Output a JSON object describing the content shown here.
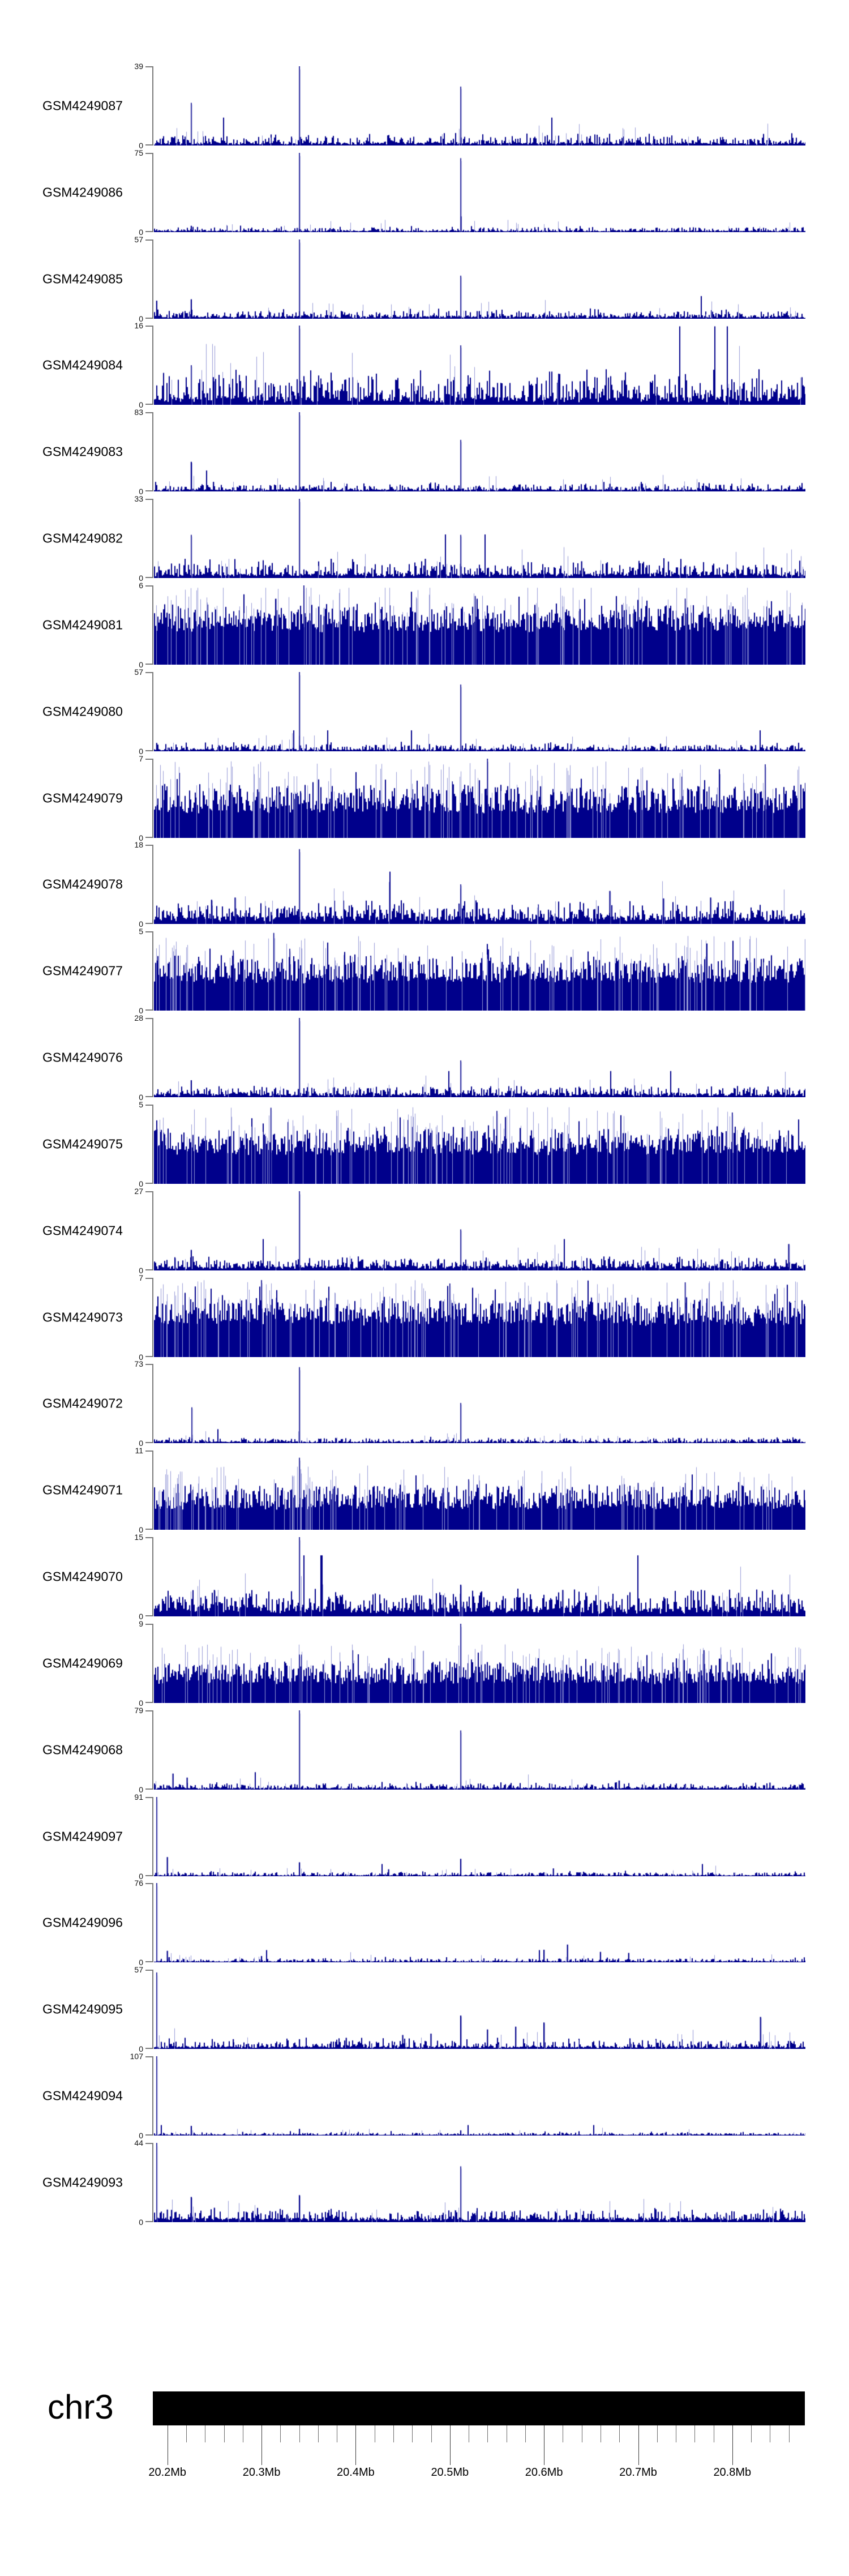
{
  "chart_data": {
    "type": "bar",
    "title": "",
    "chromosome": "chr3",
    "xlabel": "",
    "ylabel": "",
    "x_axis": {
      "tick_labels": [
        "20.2Mb",
        "20.3Mb",
        "20.4Mb",
        "20.5Mb",
        "20.6Mb",
        "20.7Mb",
        "20.8Mb"
      ],
      "major_step_mb": 0.1,
      "minor_step_mb": 0.02,
      "first_major_mb": 20.2,
      "minor_tick_count": 34
    },
    "colors": {
      "bar_dark": "#00008b",
      "bar_light": "#9598d6",
      "axis_gray": "#7b7b7b",
      "ruler_tick": "#3c3c3c",
      "ideogram_black": "#000000",
      "text_black": "#000000"
    },
    "tracks": [
      {
        "label": "GSM4249087",
        "ymax": 39,
        "ymin": 0,
        "profile": "sparse",
        "noise": {
          "base": 0.035,
          "jit": 0.1,
          "p": 0.06,
          "sh": 0.16
        },
        "peaks": [
          [
            20.2254,
            21
          ],
          [
            20.3403,
            39
          ],
          [
            20.5116,
            29
          ]
        ]
      },
      {
        "label": "GSM4249086",
        "ymax": 75,
        "ymin": 0,
        "profile": "sparse",
        "noise": {
          "base": 0.018,
          "jit": 0.05,
          "p": 0.04,
          "sh": 0.09
        },
        "peaks": [
          [
            20.2254,
            6
          ],
          [
            20.3403,
            75
          ],
          [
            20.5116,
            70
          ]
        ]
      },
      {
        "label": "GSM4249085",
        "ymax": 57,
        "ymin": 0,
        "profile": "sparse",
        "noise": {
          "base": 0.03,
          "jit": 0.08,
          "p": 0.05,
          "sh": 0.13
        },
        "peaks": [
          [
            20.1887,
            13
          ],
          [
            20.2254,
            14
          ],
          [
            20.3403,
            57
          ],
          [
            20.5116,
            31
          ]
        ]
      },
      {
        "label": "GSM4249084",
        "ymax": 16,
        "ymin": 0,
        "profile": "sparse",
        "noise": {
          "base": 0.1,
          "jit": 0.28,
          "p": 0.1,
          "sh": 0.45
        },
        "peaks": [
          [
            20.2254,
            8
          ],
          [
            20.3403,
            16
          ],
          [
            20.5116,
            12
          ]
        ]
      },
      {
        "label": "GSM4249083",
        "ymax": 83,
        "ymin": 0,
        "profile": "sparse",
        "noise": {
          "base": 0.025,
          "jit": 0.07,
          "p": 0.05,
          "sh": 0.12
        },
        "peaks": [
          [
            20.2254,
            31
          ],
          [
            20.249,
            10
          ],
          [
            20.3403,
            83
          ],
          [
            20.5116,
            54
          ],
          [
            20.67,
            8
          ]
        ]
      },
      {
        "label": "GSM4249082",
        "ymax": 33,
        "ymin": 0,
        "profile": "sparse",
        "noise": {
          "base": 0.055,
          "jit": 0.14,
          "p": 0.08,
          "sh": 0.25
        },
        "peaks": [
          [
            20.2254,
            18
          ],
          [
            20.3403,
            33
          ],
          [
            20.5116,
            18
          ],
          [
            20.374,
            8
          ],
          [
            20.474,
            8
          ],
          [
            20.64,
            7
          ]
        ]
      },
      {
        "label": "GSM4249081",
        "ymax": 6,
        "ymin": 0,
        "profile": "dense",
        "noise": {
          "base": 0.45,
          "head": 0.3
        },
        "peaks": [
          [
            20.345,
            6
          ],
          [
            20.527,
            5.2
          ],
          [
            20.75,
            5
          ]
        ]
      },
      {
        "label": "GSM4249080",
        "ymax": 57,
        "ymin": 0,
        "profile": "sparse",
        "noise": {
          "base": 0.025,
          "jit": 0.07,
          "p": 0.05,
          "sh": 0.12
        },
        "peaks": [
          [
            20.1887,
            6
          ],
          [
            20.3403,
            57
          ],
          [
            20.5116,
            48
          ]
        ]
      },
      {
        "label": "GSM4249079",
        "ymax": 7,
        "ymin": 0,
        "profile": "dense",
        "noise": {
          "base": 0.34,
          "head": 0.33
        },
        "peaks": [
          [
            20.54,
            7
          ],
          [
            20.835,
            6.5
          ]
        ]
      },
      {
        "label": "GSM4249078",
        "ymax": 18,
        "ymin": 0,
        "profile": "sparse",
        "noise": {
          "base": 0.1,
          "jit": 0.16,
          "p": 0.1,
          "sh": 0.3
        },
        "peaks": [
          [
            20.247,
            5.5
          ],
          [
            20.272,
            6
          ],
          [
            20.3403,
            17
          ],
          [
            20.5116,
            9
          ],
          [
            20.67,
            7.5
          ],
          [
            20.727,
            5.8
          ],
          [
            20.777,
            6
          ]
        ]
      },
      {
        "label": "GSM4249077",
        "ymax": 5,
        "ymin": 0,
        "profile": "dense",
        "noise": {
          "base": 0.38,
          "head": 0.3
        },
        "peaks": [
          [
            20.313,
            4.9
          ],
          [
            20.27,
            3.8
          ],
          [
            20.33,
            3.9
          ]
        ]
      },
      {
        "label": "GSM4249076",
        "ymax": 28,
        "ymin": 0,
        "profile": "sparse",
        "noise": {
          "base": 0.045,
          "jit": 0.1,
          "p": 0.06,
          "sh": 0.15
        },
        "peaks": [
          [
            20.2254,
            6
          ],
          [
            20.3403,
            28
          ],
          [
            20.5116,
            13
          ]
        ]
      },
      {
        "label": "GSM4249075",
        "ymax": 5,
        "ymin": 0,
        "profile": "dense",
        "noise": {
          "base": 0.4,
          "head": 0.3
        },
        "peaks": [
          [
            20.31,
            4.8
          ],
          [
            20.55,
            4.6
          ],
          [
            20.8,
            4.5
          ]
        ]
      },
      {
        "label": "GSM4249074",
        "ymax": 27,
        "ymin": 0,
        "profile": "sparse",
        "noise": {
          "base": 0.055,
          "jit": 0.11,
          "p": 0.07,
          "sh": 0.18
        },
        "peaks": [
          [
            20.2254,
            7
          ],
          [
            20.3403,
            27
          ],
          [
            20.5116,
            14
          ],
          [
            20.86,
            9
          ]
        ]
      },
      {
        "label": "GSM4249073",
        "ymax": 7,
        "ymin": 0,
        "profile": "dense",
        "noise": {
          "base": 0.43,
          "head": 0.3
        },
        "peaks": [
          [
            20.3,
            6.8
          ],
          [
            20.5,
            6.5
          ],
          [
            20.75,
            6.6
          ]
        ]
      },
      {
        "label": "GSM4249072",
        "ymax": 73,
        "ymin": 0,
        "profile": "sparse",
        "noise": {
          "base": 0.02,
          "jit": 0.05,
          "p": 0.04,
          "sh": 0.08
        },
        "peaks": [
          [
            20.226,
            33
          ],
          [
            20.3403,
            70
          ],
          [
            20.5116,
            37
          ]
        ]
      },
      {
        "label": "GSM4249071",
        "ymax": 11,
        "ymin": 0,
        "profile": "dense",
        "noise": {
          "base": 0.28,
          "head": 0.28
        },
        "peaks": [
          [
            20.3403,
            10
          ],
          [
            20.52,
            7
          ],
          [
            20.7,
            6.5
          ]
        ]
      },
      {
        "label": "GSM4249070",
        "ymax": 15,
        "ymin": 0,
        "profile": "sparse",
        "noise": {
          "base": 0.11,
          "jit": 0.2,
          "p": 0.12,
          "sh": 0.35
        },
        "peaks": [
          [
            20.3403,
            15
          ],
          [
            20.5116,
            6
          ],
          [
            20.25,
            5
          ],
          [
            20.62,
            5
          ]
        ]
      },
      {
        "label": "GSM4249069",
        "ymax": 9,
        "ymin": 0,
        "profile": "dense",
        "noise": {
          "base": 0.26,
          "head": 0.26
        },
        "peaks": [
          [
            20.5116,
            9
          ],
          [
            20.3403,
            5.5
          ],
          [
            20.77,
            6
          ]
        ]
      },
      {
        "label": "GSM4249068",
        "ymax": 79,
        "ymin": 0,
        "profile": "sparse",
        "noise": {
          "base": 0.025,
          "jit": 0.06,
          "p": 0.05,
          "sh": 0.1
        },
        "peaks": [
          [
            20.206,
            16
          ],
          [
            20.221,
            12
          ],
          [
            20.3403,
            79
          ],
          [
            20.5116,
            59
          ],
          [
            20.68,
            9
          ],
          [
            20.84,
            7
          ]
        ]
      },
      {
        "label": "GSM4249097",
        "ymax": 91,
        "ymin": 0,
        "profile": "sparse",
        "noise": {
          "base": 0.014,
          "jit": 0.04,
          "p": 0.03,
          "sh": 0.07
        },
        "peaks": [
          [
            20.1887,
            91
          ],
          [
            20.2,
            22
          ],
          [
            20.3403,
            16
          ],
          [
            20.435,
            8
          ],
          [
            20.5116,
            20
          ],
          [
            20.61,
            9
          ]
        ]
      },
      {
        "label": "GSM4249096",
        "ymax": 76,
        "ymin": 0,
        "profile": "sparse",
        "noise": {
          "base": 0.013,
          "jit": 0.04,
          "p": 0.03,
          "sh": 0.07
        },
        "peaks": [
          [
            20.1887,
            76
          ],
          [
            20.2,
            11
          ],
          [
            20.3,
            6
          ],
          [
            20.6,
            12
          ],
          [
            20.625,
            17
          ],
          [
            20.66,
            10
          ],
          [
            20.69,
            9
          ]
        ]
      },
      {
        "label": "GSM4249095",
        "ymax": 57,
        "ymin": 0,
        "profile": "sparse",
        "noise": {
          "base": 0.03,
          "jit": 0.08,
          "p": 0.07,
          "sh": 0.15
        },
        "peaks": [
          [
            20.1887,
            55
          ],
          [
            20.27,
            7
          ],
          [
            20.3403,
            7
          ],
          [
            20.39,
            8
          ],
          [
            20.45,
            10
          ],
          [
            20.48,
            11
          ],
          [
            20.54,
            14
          ],
          [
            20.57,
            16
          ],
          [
            20.6,
            19
          ],
          [
            20.5116,
            24
          ],
          [
            20.83,
            23
          ]
        ]
      },
      {
        "label": "GSM4249094",
        "ymax": 107,
        "ymin": 0,
        "profile": "sparse",
        "noise": {
          "base": 0.012,
          "jit": 0.03,
          "p": 0.025,
          "sh": 0.06
        },
        "peaks": [
          [
            20.1887,
            107
          ],
          [
            20.2254,
            13
          ],
          [
            20.28,
            5
          ],
          [
            20.3403,
            9
          ],
          [
            20.5116,
            7
          ]
        ]
      },
      {
        "label": "GSM4249093",
        "ymax": 44,
        "ymin": 0,
        "profile": "sparse",
        "noise": {
          "base": 0.05,
          "jit": 0.11,
          "p": 0.08,
          "sh": 0.18
        },
        "peaks": [
          [
            20.1887,
            44
          ],
          [
            20.2,
            7
          ],
          [
            20.2254,
            14
          ],
          [
            20.25,
            8
          ],
          [
            20.3403,
            15
          ],
          [
            20.5116,
            31
          ]
        ]
      }
    ]
  }
}
